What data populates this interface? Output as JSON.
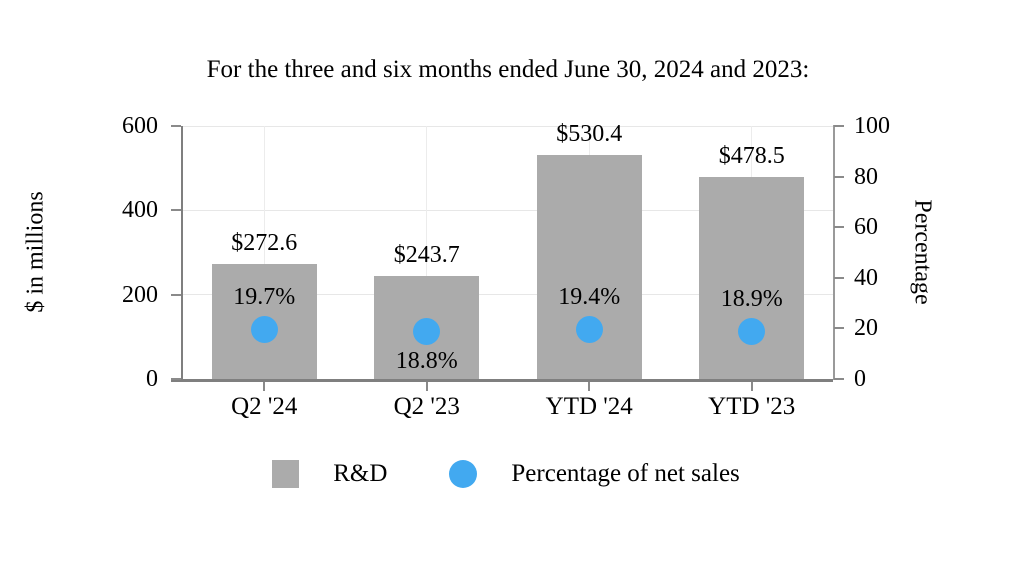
{
  "chart_data": {
    "type": "bar",
    "title": "For the three and six months ended June 30, 2024 and 2023:",
    "categories": [
      "Q2 '24",
      "Q2 '23",
      "YTD '24",
      "YTD '23"
    ],
    "series": [
      {
        "name": "R&D",
        "type": "bar",
        "axis": "left",
        "values": [
          272.6,
          243.7,
          530.4,
          478.5
        ],
        "labels": [
          "$272.6",
          "$243.7",
          "$530.4",
          "$478.5"
        ],
        "color": "#ABABAB"
      },
      {
        "name": "Percentage of net sales",
        "type": "scatter",
        "axis": "right",
        "values": [
          19.7,
          18.8,
          19.4,
          18.9
        ],
        "labels": [
          "19.7%",
          "18.8%",
          "19.4%",
          "18.9%"
        ],
        "label_positions": [
          "above",
          "below",
          "above",
          "above"
        ],
        "color": "#42A9F0"
      }
    ],
    "left_axis": {
      "label": "$ in millions",
      "ticks": [
        0,
        200,
        400,
        600
      ],
      "range": [
        0,
        600
      ]
    },
    "right_axis": {
      "label": "Percentage",
      "ticks": [
        0,
        20,
        40,
        60,
        80,
        100
      ],
      "range": [
        0,
        100
      ]
    },
    "grid": true,
    "legend": {
      "position": "bottom",
      "entries": [
        {
          "label": "R&D",
          "swatch": "square",
          "color": "#ABABAB"
        },
        {
          "label": "Percentage of net sales",
          "swatch": "circle",
          "color": "#42A9F0"
        }
      ]
    },
    "colors": {
      "bar": "#ABABAB",
      "dot": "#42A9F0",
      "axis": "#7F7F7F",
      "grid": "#E9E9E9",
      "text": "#000000"
    }
  }
}
